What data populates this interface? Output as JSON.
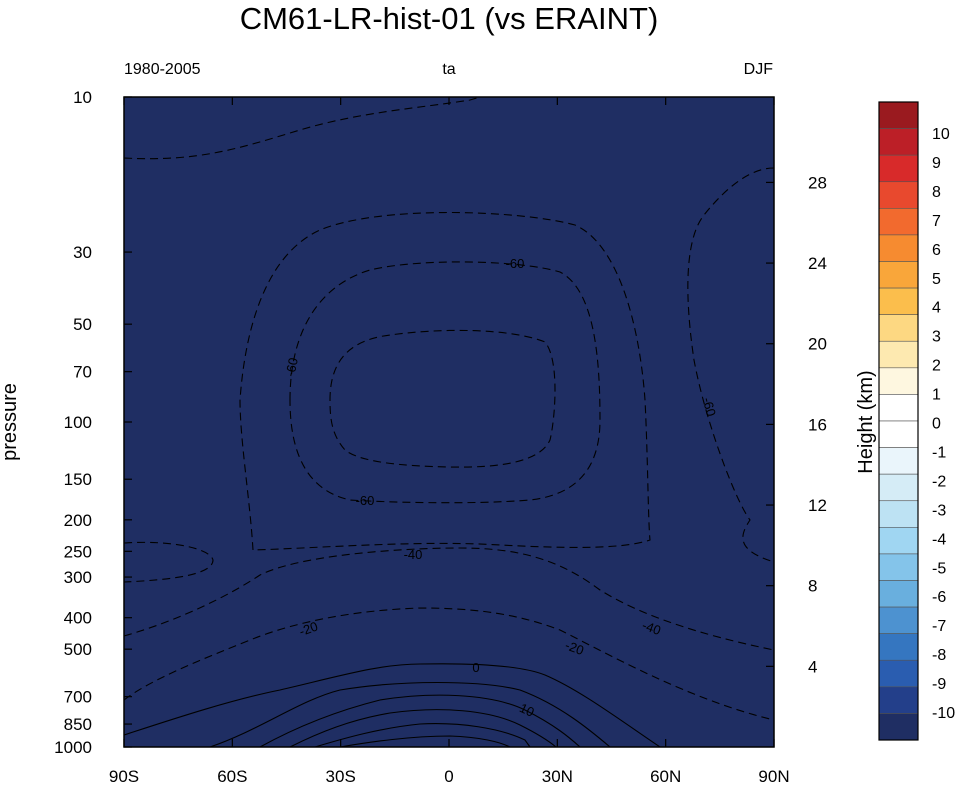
{
  "chart_data": {
    "type": "heatmap",
    "title": "CM61-LR-hist-01  (vs ERAINT)",
    "subtitle_left": "1980-2005",
    "subtitle_center": "ta",
    "subtitle_right": "DJF",
    "xlabel": "",
    "ylabel": "pressure",
    "ylabel_right": "Height (km)",
    "xlim": [
      -90,
      90
    ],
    "x_ticks": [
      {
        "value": -90,
        "label": "90S"
      },
      {
        "value": -60,
        "label": "60S"
      },
      {
        "value": -30,
        "label": "30S"
      },
      {
        "value": 0,
        "label": "0"
      },
      {
        "value": 30,
        "label": "30N"
      },
      {
        "value": 60,
        "label": "60N"
      },
      {
        "value": 90,
        "label": "90N"
      }
    ],
    "y_scale": "log",
    "ylim": [
      1000,
      10
    ],
    "y_ticks": [
      10,
      30,
      50,
      70,
      100,
      150,
      200,
      250,
      300,
      400,
      500,
      700,
      850,
      1000
    ],
    "y_right_ticks": [
      4,
      8,
      12,
      16,
      20,
      24,
      28
    ],
    "fill_color": "#1f2e63",
    "colorbar": {
      "labels": [
        "10",
        "9",
        "8",
        "7",
        "6",
        "5",
        "4",
        "3",
        "2",
        "1",
        "0",
        "-1",
        "-2",
        "-3",
        "-4",
        "-5",
        "-6",
        "-7",
        "-8",
        "-9",
        "-10"
      ],
      "colors": [
        "#9a1a1f",
        "#bc1f27",
        "#d82a2a",
        "#e8492e",
        "#f26a2e",
        "#f68b30",
        "#f9a63a",
        "#fbbe4c",
        "#fdd882",
        "#fde9b0",
        "#fef7e0",
        "#ffffff",
        "#ffffff",
        "#eaf5fb",
        "#d5ecf6",
        "#bde2f3",
        "#a0d6f2",
        "#84c4ea",
        "#69afde",
        "#4d92d0",
        "#3576c0",
        "#2a5db0",
        "#233f8a",
        "#1f2e63"
      ]
    },
    "contour_labels": [
      "-60",
      "-60",
      "-60",
      "-60",
      "-40",
      "-40",
      "-20",
      "-20",
      "0",
      "10"
    ],
    "line_styles": {
      "negative": "dashed",
      "zero_and_positive": "solid"
    }
  }
}
